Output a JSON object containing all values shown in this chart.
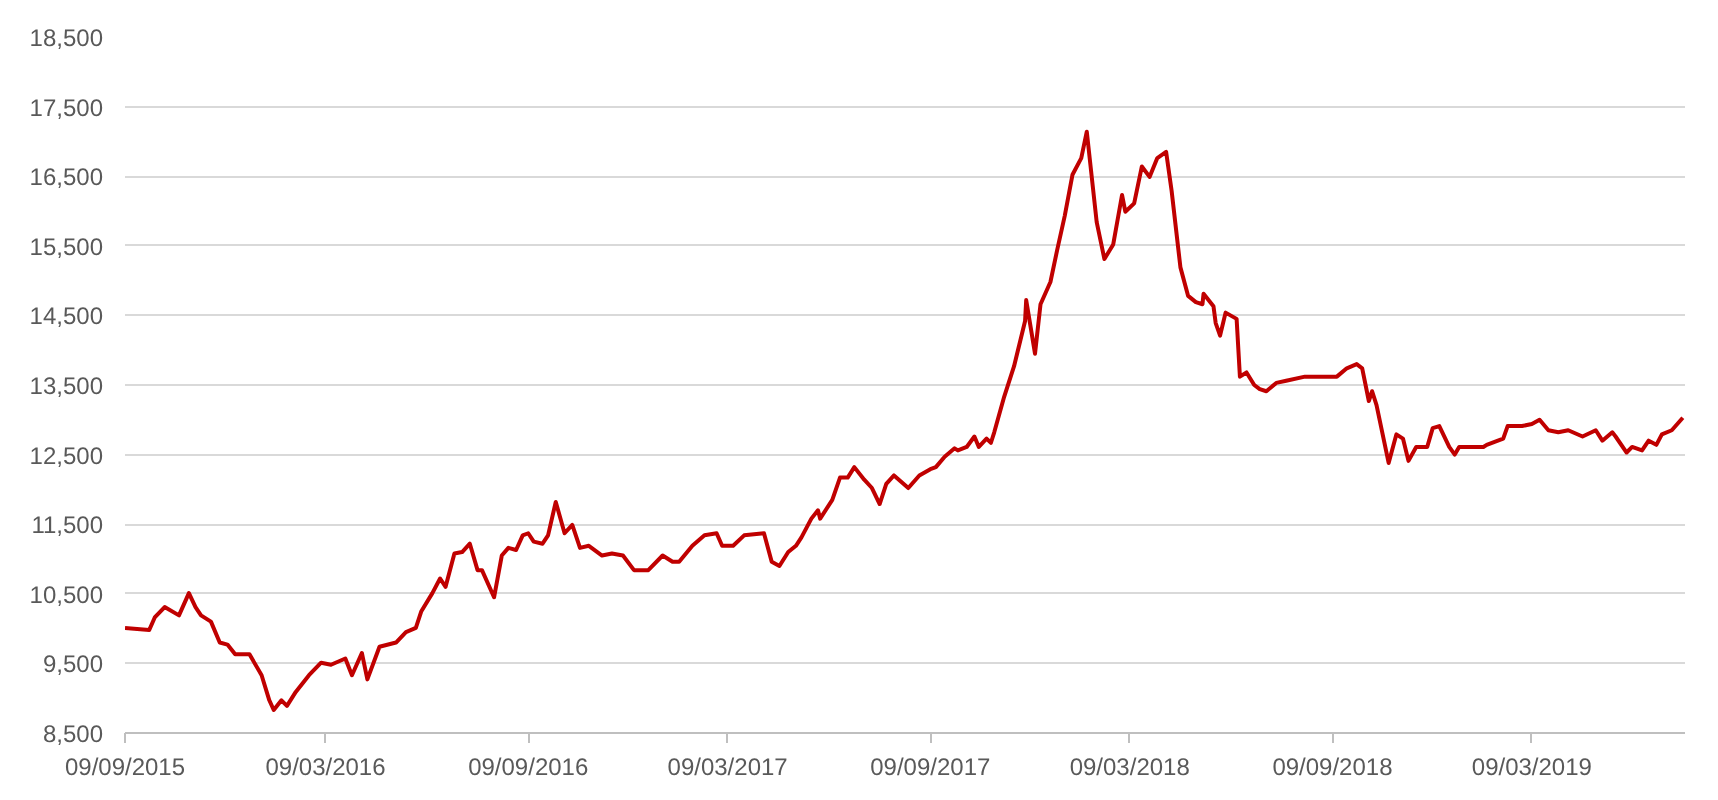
{
  "chart_data": {
    "type": "line",
    "x": [
      "2015-09-09",
      "2015-10-01",
      "2015-10-06",
      "2015-10-15",
      "2015-10-28",
      "2015-11-06",
      "2015-11-12",
      "2015-11-17",
      "2015-11-26",
      "2015-12-04",
      "2015-12-11",
      "2015-12-18",
      "2015-12-31",
      "2016-01-11",
      "2016-01-18",
      "2016-01-22",
      "2016-01-29",
      "2016-02-03",
      "2016-02-11",
      "2016-02-23",
      "2016-03-05",
      "2016-03-14",
      "2016-03-27",
      "2016-04-02",
      "2016-04-11",
      "2016-04-16",
      "2016-04-27",
      "2016-05-12",
      "2016-05-21",
      "2016-05-30",
      "2016-06-04",
      "2016-06-14",
      "2016-06-21",
      "2016-06-26",
      "2016-07-04",
      "2016-07-11",
      "2016-07-18",
      "2016-07-25",
      "2016-07-29",
      "2016-08-09",
      "2016-08-16",
      "2016-08-22",
      "2016-08-29",
      "2016-09-04",
      "2016-09-09",
      "2016-09-14",
      "2016-09-22",
      "2016-09-27",
      "2016-10-04",
      "2016-10-12",
      "2016-10-19",
      "2016-10-26",
      "2016-11-03",
      "2016-11-15",
      "2016-11-24",
      "2016-12-04",
      "2016-12-14",
      "2016-12-27",
      "2017-01-09",
      "2017-01-18",
      "2017-01-24",
      "2017-02-05",
      "2017-02-16",
      "2017-02-27",
      "2017-03-04",
      "2017-03-14",
      "2017-03-24",
      "2017-04-11",
      "2017-04-18",
      "2017-04-25",
      "2017-05-03",
      "2017-05-10",
      "2017-05-15",
      "2017-05-24",
      "2017-05-30",
      "2017-06-01",
      "2017-06-12",
      "2017-06-19",
      "2017-06-26",
      "2017-07-02",
      "2017-07-11",
      "2017-07-18",
      "2017-07-25",
      "2017-07-31",
      "2017-08-07",
      "2017-08-20",
      "2017-08-30",
      "2017-09-09",
      "2017-09-14",
      "2017-09-22",
      "2017-10-01",
      "2017-10-04",
      "2017-10-12",
      "2017-10-19",
      "2017-10-23",
      "2017-10-30",
      "2017-11-03",
      "2017-11-06",
      "2017-11-15",
      "2017-11-24",
      "2017-12-04",
      "2017-12-05",
      "2017-12-13",
      "2017-12-18",
      "2017-12-27",
      "2018-01-02",
      "2018-01-09",
      "2018-01-16",
      "2018-01-24",
      "2018-01-29",
      "2018-02-07",
      "2018-02-14",
      "2018-02-22",
      "2018-03-02",
      "2018-03-05",
      "2018-03-13",
      "2018-03-20",
      "2018-03-27",
      "2018-04-03",
      "2018-04-11",
      "2018-04-16",
      "2018-04-24",
      "2018-05-01",
      "2018-05-08",
      "2018-05-14",
      "2018-05-15",
      "2018-05-24",
      "2018-05-26",
      "2018-05-30",
      "2018-06-04",
      "2018-06-14",
      "2018-06-17",
      "2018-06-23",
      "2018-06-30",
      "2018-07-05",
      "2018-07-11",
      "2018-07-20",
      "2018-07-29",
      "2018-08-15",
      "2018-08-30",
      "2018-09-13",
      "2018-09-22",
      "2018-10-01",
      "2018-10-06",
      "2018-10-12",
      "2018-10-15",
      "2018-10-19",
      "2018-10-30",
      "2018-11-06",
      "2018-11-12",
      "2018-11-17",
      "2018-11-24",
      "2018-12-04",
      "2018-12-09",
      "2018-12-15",
      "2018-12-24",
      "2018-12-29",
      "2019-01-02",
      "2019-01-11",
      "2019-01-24",
      "2019-01-27",
      "2019-02-11",
      "2019-02-15",
      "2019-02-28",
      "2019-03-09",
      "2019-03-16",
      "2019-03-24",
      "2019-04-02",
      "2019-04-11",
      "2019-04-24",
      "2019-05-06",
      "2019-05-12",
      "2019-05-21",
      "2019-05-24",
      "2019-06-03",
      "2019-06-08",
      "2019-06-17",
      "2019-06-23",
      "2019-06-30",
      "2019-07-05",
      "2019-07-14",
      "2019-07-24"
    ],
    "series": [
      {
        "color": "#c00000",
        "values": [
          10010,
          9980,
          10160,
          10310,
          10190,
          10510,
          10310,
          10190,
          10100,
          9800,
          9770,
          9630,
          9630,
          9330,
          8970,
          8830,
          8970,
          8890,
          9090,
          9330,
          9510,
          9480,
          9570,
          9330,
          9650,
          9270,
          9740,
          9800,
          9950,
          10010,
          10250,
          10510,
          10720,
          10600,
          11080,
          11100,
          11220,
          10840,
          10840,
          10450,
          11050,
          11160,
          11130,
          11340,
          11370,
          11250,
          11220,
          11340,
          11820,
          11370,
          11490,
          11160,
          11190,
          11050,
          11080,
          11050,
          10840,
          10840,
          11050,
          10960,
          10960,
          11190,
          11340,
          11370,
          11190,
          11190,
          11340,
          11370,
          10960,
          10900,
          11100,
          11190,
          11310,
          11580,
          11700,
          11580,
          11850,
          12170,
          12170,
          12320,
          12140,
          12020,
          11790,
          12080,
          12200,
          12020,
          12200,
          12290,
          12320,
          12470,
          12590,
          12560,
          12610,
          12760,
          12610,
          12730,
          12670,
          12820,
          13330,
          13770,
          14420,
          14720,
          13950,
          14660,
          14980,
          15430,
          15930,
          16520,
          16760,
          17140,
          15840,
          15310,
          15520,
          16230,
          15990,
          16110,
          16640,
          16490,
          16760,
          16850,
          16290,
          15190,
          14780,
          14690,
          14660,
          14810,
          14630,
          14390,
          14210,
          14540,
          14450,
          13620,
          13680,
          13500,
          13440,
          13410,
          13530,
          13560,
          13620,
          13620,
          13620,
          13740,
          13800,
          13740,
          13270,
          13410,
          13210,
          12380,
          12790,
          12730,
          12410,
          12610,
          12610,
          12880,
          12910,
          12610,
          12500,
          12610,
          12610,
          12610,
          12640,
          12730,
          12910,
          12910,
          12940,
          13000,
          12850,
          12820,
          12850,
          12760,
          12850,
          12700,
          12820,
          12760,
          12530,
          12610,
          12560,
          12700,
          12640,
          12790,
          12850,
          13030
        ]
      }
    ],
    "xlim": [
      "2015-09-09",
      "2019-07-26"
    ],
    "xticks": [
      {
        "value": "2015-09-09",
        "label": "09/09/2015"
      },
      {
        "value": "2016-03-09",
        "label": "09/03/2016"
      },
      {
        "value": "2016-09-09",
        "label": "09/09/2016"
      },
      {
        "value": "2017-03-09",
        "label": "09/03/2017"
      },
      {
        "value": "2017-09-09",
        "label": "09/09/2017"
      },
      {
        "value": "2018-03-09",
        "label": "09/03/2018"
      },
      {
        "value": "2018-09-09",
        "label": "09/09/2018"
      },
      {
        "value": "2019-03-09",
        "label": "09/03/2019"
      }
    ],
    "ylim": [
      8500,
      18500
    ],
    "yticks": [
      {
        "value": 8500,
        "label": "8,500"
      },
      {
        "value": 9500,
        "label": "9,500"
      },
      {
        "value": 10500,
        "label": "10,500"
      },
      {
        "value": 11500,
        "label": "11,500"
      },
      {
        "value": 12500,
        "label": "12,500"
      },
      {
        "value": 13500,
        "label": "13,500"
      },
      {
        "value": 14500,
        "label": "14,500"
      },
      {
        "value": 15500,
        "label": "15,500"
      },
      {
        "value": 16500,
        "label": "16,500"
      },
      {
        "value": 17500,
        "label": "17,500"
      },
      {
        "value": 18500,
        "label": "18,500"
      }
    ],
    "grid": "y",
    "line_style": "solid"
  }
}
